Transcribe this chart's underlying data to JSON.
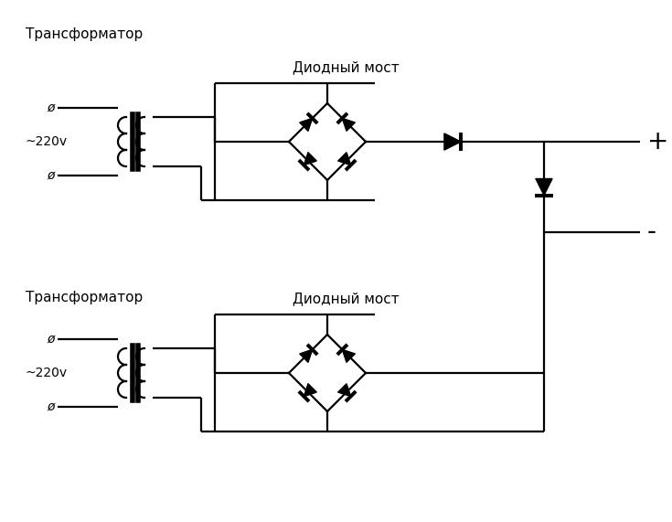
{
  "bg_color": "#ffffff",
  "line_color": "#000000",
  "text_color": "#000000",
  "label_transformer": "Трансформатор",
  "label_bridge": "Диодный мост",
  "label_voltage": "~220v",
  "label_plus": "+",
  "label_minus": "-",
  "figsize": [
    7.35,
    5.71
  ],
  "dpi": 100,
  "lw": 1.6
}
